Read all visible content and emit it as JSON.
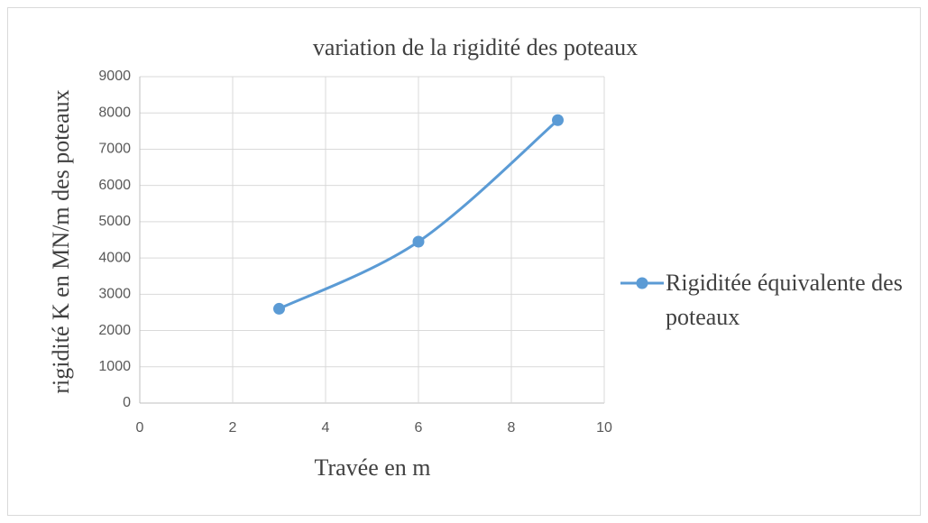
{
  "chart_data": {
    "type": "line",
    "title": "variation de la rigidité des poteaux",
    "xlabel": "Travée en m",
    "ylabel": "rigidité K en  MN/m des poteaux",
    "x": [
      3,
      6,
      9
    ],
    "series": [
      {
        "name": "Rigiditée équivalente des poteaux",
        "color": "#5b9bd5",
        "values": [
          2600,
          4450,
          7800
        ]
      }
    ],
    "xlim": [
      0,
      10
    ],
    "xticks": [
      0,
      2,
      4,
      6,
      8,
      10
    ],
    "ylim": [
      0,
      9000
    ],
    "yticks": [
      0,
      1000,
      2000,
      3000,
      4000,
      5000,
      6000,
      7000,
      8000,
      9000
    ],
    "grid": true,
    "smooth": true,
    "legend": "right"
  }
}
